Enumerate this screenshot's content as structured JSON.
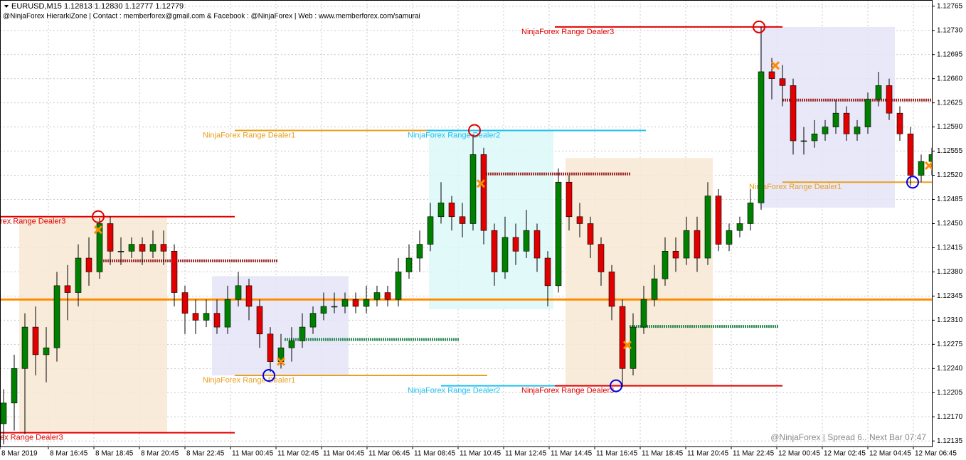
{
  "chart_data": {
    "type": "candlestick",
    "title": "EURUSD,M15  1.12813 1.12830 1.12777 1.12779",
    "subtitle": "@NinjaForex HierarkiZone | Contact : memberforex@gmail.com & Facebook : @NinjaForex | Web : www.memberforex.com/samurai",
    "footer": "@NinjaForex | Spread 6.. Next Bar 07:47",
    "ylim": [
      1.12127,
      1.12774
    ],
    "yticks": [
      1.12765,
      {
        "value": 1.1273,
        "label": "1.12730"
      },
      1.12695,
      {
        "value": 1.1266,
        "label": "1.12660"
      },
      1.12625,
      {
        "value": 1.1259,
        "label": "1.12590"
      },
      1.12555,
      {
        "value": 1.1252,
        "label": "1.12520"
      },
      1.12485,
      {
        "value": 1.1245,
        "label": "1.12450"
      },
      1.12415,
      {
        "value": 1.1238,
        "label": "1.12380"
      },
      1.12345,
      {
        "value": 1.1231,
        "label": "1.12310"
      },
      1.12275,
      {
        "value": 1.1224,
        "label": "1.12240"
      },
      1.12205,
      {
        "value": 1.1217,
        "label": "1.12170"
      },
      1.12135
    ],
    "time_labels": [
      "8 Mar 2019",
      "8 Mar 16:45",
      "8 Mar 18:45",
      "8 Mar 20:45",
      "8 Mar 22:45",
      "11 Mar 00:45",
      "11 Mar 02:45",
      "11 Mar 04:45",
      "11 Mar 06:45",
      "11 Mar 08:45",
      "11 Mar 10:45",
      "11 Mar 12:45",
      "11 Mar 14:45",
      "11 Mar 16:45",
      "11 Mar 18:45",
      "11 Mar 20:45",
      "11 Mar 22:45",
      "12 Mar 00:45",
      "12 Mar 02:45",
      "12 Mar 04:45",
      "12 Mar 06:45"
    ],
    "grid": true,
    "up_color": "#008000",
    "down_color": "#e00000",
    "candles": [
      [
        1.1216,
        1.1221,
        1.1213,
        1.1219
      ],
      [
        1.1219,
        1.1226,
        1.1215,
        1.1224
      ],
      [
        1.1224,
        1.1232,
        1.12145,
        1.123
      ],
      [
        1.123,
        1.1233,
        1.1223,
        1.1226
      ],
      [
        1.1226,
        1.123,
        1.1222,
        1.1227
      ],
      [
        1.1227,
        1.1238,
        1.1225,
        1.1236
      ],
      [
        1.1236,
        1.1239,
        1.1231,
        1.1235
      ],
      [
        1.1235,
        1.1242,
        1.1233,
        1.124
      ],
      [
        1.124,
        1.1243,
        1.1236,
        1.1238
      ],
      [
        1.1238,
        1.12458,
        1.1237,
        1.1245
      ],
      [
        1.1245,
        1.1246,
        1.1239,
        1.1241
      ],
      [
        1.1241,
        1.1243,
        1.1239,
        1.1241
      ],
      [
        1.1241,
        1.1243,
        1.124,
        1.1242
      ],
      [
        1.1242,
        1.1243,
        1.1239,
        1.1241
      ],
      [
        1.1241,
        1.1244,
        1.124,
        1.1242
      ],
      [
        1.1242,
        1.1244,
        1.1239,
        1.1241
      ],
      [
        1.1241,
        1.1242,
        1.1233,
        1.1235
      ],
      [
        1.1235,
        1.1236,
        1.1229,
        1.1232
      ],
      [
        1.1232,
        1.1234,
        1.1229,
        1.1231
      ],
      [
        1.1231,
        1.1234,
        1.123,
        1.1232
      ],
      [
        1.1232,
        1.1234,
        1.1229,
        1.123
      ],
      [
        1.123,
        1.1236,
        1.1229,
        1.1234
      ],
      [
        1.1234,
        1.1238,
        1.1233,
        1.1236
      ],
      [
        1.1236,
        1.1237,
        1.1231,
        1.1233
      ],
      [
        1.1233,
        1.1234,
        1.1227,
        1.1229
      ],
      [
        1.1229,
        1.123,
        1.12235,
        1.1225
      ],
      [
        1.1225,
        1.1229,
        1.1224,
        1.1227
      ],
      [
        1.1227,
        1.123,
        1.1225,
        1.1228
      ],
      [
        1.1228,
        1.1232,
        1.1227,
        1.123
      ],
      [
        1.123,
        1.1233,
        1.1229,
        1.1232
      ],
      [
        1.1232,
        1.1235,
        1.1231,
        1.1233
      ],
      [
        1.1233,
        1.1235,
        1.1232,
        1.1233
      ],
      [
        1.1233,
        1.1235,
        1.1232,
        1.1234
      ],
      [
        1.1234,
        1.1235,
        1.1232,
        1.1233
      ],
      [
        1.1233,
        1.1236,
        1.1232,
        1.1234
      ],
      [
        1.1234,
        1.1236,
        1.1233,
        1.1235
      ],
      [
        1.1235,
        1.1236,
        1.1233,
        1.1234
      ],
      [
        1.1234,
        1.124,
        1.1233,
        1.1238
      ],
      [
        1.1238,
        1.1242,
        1.1237,
        1.124
      ],
      [
        1.124,
        1.1244,
        1.1238,
        1.1242
      ],
      [
        1.1242,
        1.1248,
        1.1241,
        1.1246
      ],
      [
        1.1246,
        1.1251,
        1.1245,
        1.1248
      ],
      [
        1.1248,
        1.1249,
        1.1244,
        1.1246
      ],
      [
        1.1246,
        1.1248,
        1.1243,
        1.1245
      ],
      [
        1.1245,
        1.12579,
        1.1244,
        1.1255
      ],
      [
        1.1255,
        1.1256,
        1.1242,
        1.1244
      ],
      [
        1.1244,
        1.1245,
        1.1236,
        1.1238
      ],
      [
        1.1238,
        1.1246,
        1.1237,
        1.1243
      ],
      [
        1.1243,
        1.1245,
        1.1239,
        1.1241
      ],
      [
        1.1241,
        1.1247,
        1.124,
        1.1244
      ],
      [
        1.1244,
        1.1245,
        1.1238,
        1.124
      ],
      [
        1.124,
        1.1241,
        1.1233,
        1.1236
      ],
      [
        1.1236,
        1.1253,
        1.1235,
        1.1251
      ],
      [
        1.1251,
        1.1252,
        1.1244,
        1.1246
      ],
      [
        1.1246,
        1.1248,
        1.1243,
        1.1245
      ],
      [
        1.1245,
        1.1246,
        1.124,
        1.1242
      ],
      [
        1.1242,
        1.1243,
        1.1236,
        1.1238
      ],
      [
        1.1238,
        1.1239,
        1.1231,
        1.1233
      ],
      [
        1.1233,
        1.1234,
        1.12213,
        1.1224
      ],
      [
        1.1224,
        1.1232,
        1.1223,
        1.123
      ],
      [
        1.123,
        1.1236,
        1.1229,
        1.1234
      ],
      [
        1.1234,
        1.1239,
        1.1233,
        1.1237
      ],
      [
        1.1237,
        1.1243,
        1.1236,
        1.1241
      ],
      [
        1.1241,
        1.1243,
        1.1238,
        1.124
      ],
      [
        1.124,
        1.1246,
        1.1239,
        1.1244
      ],
      [
        1.1244,
        1.1246,
        1.1238,
        1.124
      ],
      [
        1.124,
        1.1251,
        1.1239,
        1.1249
      ],
      [
        1.1249,
        1.125,
        1.1241,
        1.1242
      ],
      [
        1.1242,
        1.1245,
        1.1241,
        1.1244
      ],
      [
        1.1244,
        1.1246,
        1.1243,
        1.1245
      ],
      [
        1.1245,
        1.125,
        1.1244,
        1.1248
      ],
      [
        1.1248,
        1.12735,
        1.1247,
        1.1267
      ],
      [
        1.1267,
        1.1269,
        1.1263,
        1.1266
      ],
      [
        1.1266,
        1.1268,
        1.1262,
        1.1265
      ],
      [
        1.1265,
        1.1266,
        1.1255,
        1.1257
      ],
      [
        1.1257,
        1.1259,
        1.1255,
        1.1257
      ],
      [
        1.1257,
        1.126,
        1.1256,
        1.1258
      ],
      [
        1.1258,
        1.126,
        1.1257,
        1.1259
      ],
      [
        1.1259,
        1.1263,
        1.1258,
        1.1261
      ],
      [
        1.1261,
        1.1262,
        1.1257,
        1.1258
      ],
      [
        1.1258,
        1.126,
        1.1257,
        1.1259
      ],
      [
        1.1259,
        1.1264,
        1.1258,
        1.1263
      ],
      [
        1.1263,
        1.1267,
        1.1262,
        1.1265
      ],
      [
        1.1265,
        1.1266,
        1.126,
        1.1261
      ],
      [
        1.1261,
        1.1262,
        1.1257,
        1.1258
      ],
      [
        1.1258,
        1.1259,
        1.12505,
        1.1252
      ],
      [
        1.1252,
        1.1255,
        1.1251,
        1.1254
      ],
      [
        1.1254,
        1.1256,
        1.1252,
        1.1255
      ]
    ],
    "boxes": [
      {
        "top": 1.1246,
        "bottom": 1.12147,
        "color": "#f8e8d4"
      },
      {
        "top": 1.12374,
        "bottom": 1.1223,
        "color": "#e4e4f8"
      },
      {
        "top": 1.12585,
        "bottom": 1.12326,
        "color": "#dcf8f8"
      },
      {
        "top": 1.12545,
        "bottom": 1.12215,
        "color": "#f8e8d4"
      },
      {
        "top": 1.12735,
        "bottom": 1.12473,
        "color": "#e4e4f8"
      }
    ],
    "support_line": {
      "price": 1.1234,
      "color": "#ff8c00"
    },
    "levels": [
      {
        "label": "rex Range Dealer3",
        "price": 1.1246,
        "color": "#e00000"
      },
      {
        "label": "ex Range Dealer3",
        "price": 1.12147,
        "color": "#e00000"
      },
      {
        "label": "NinjaForex Range Dealer1",
        "price": 1.12585,
        "color": "#e8a020"
      },
      {
        "label": "NinjaForex Range Dealer2",
        "price": 1.12585,
        "color": "#20c0f0"
      },
      {
        "label": "NinjaForex Range Dealer3",
        "price": 1.12735,
        "color": "#e00000"
      },
      {
        "label": "NinjaForex Range Dealer1",
        "price": 1.1223,
        "color": "#e8a020"
      },
      {
        "label": "NinjaForex Range Dealer2",
        "price": 1.12215,
        "color": "#20c0f0"
      },
      {
        "label": "NinjaForex Range Dealer3",
        "price": 1.12215,
        "color": "#e00000"
      },
      {
        "label": "NinjaForex Range Dealer1",
        "price": 1.1251,
        "color": "#e8a020"
      }
    ],
    "dotted_levels": [
      {
        "price": 1.12396,
        "color": "#a03030"
      },
      {
        "price": 1.12522,
        "color": "#a03030"
      },
      {
        "price": 1.12629,
        "color": "#a03030"
      },
      {
        "price": 1.12282,
        "color": "#2e8b57"
      },
      {
        "price": 1.12301,
        "color": "#2e8b57"
      }
    ],
    "circles": [
      {
        "price": 1.1246,
        "color": "#e00000"
      },
      {
        "price": 1.12585,
        "color": "#e00000"
      },
      {
        "price": 1.12735,
        "color": "#e00000"
      },
      {
        "price": 1.1223,
        "color": "#0000e0"
      },
      {
        "price": 1.12215,
        "color": "#0000e0"
      },
      {
        "price": 1.1251,
        "color": "#0000e0"
      }
    ],
    "crosses": [
      {
        "price": 1.12441,
        "color": "#ff8c00"
      },
      {
        "price": 1.1225,
        "color": "#ff8c00"
      },
      {
        "price": 1.12508,
        "color": "#ff8c00"
      },
      {
        "price": 1.12274,
        "color": "#ff8c00"
      },
      {
        "price": 1.12679,
        "color": "#ff8c00"
      },
      {
        "price": 1.12534,
        "color": "#ff8c00"
      }
    ]
  }
}
